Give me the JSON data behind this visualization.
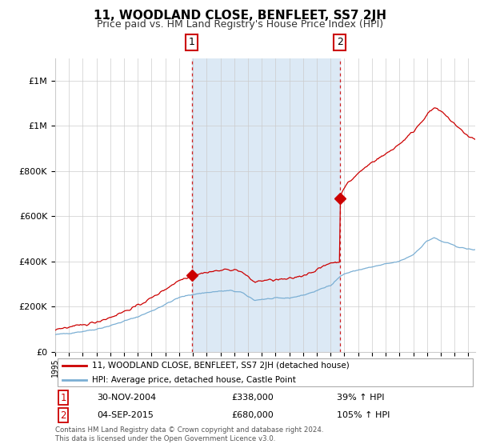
{
  "title": "11, WOODLAND CLOSE, BENFLEET, SS7 2JH",
  "subtitle": "Price paid vs. HM Land Registry's House Price Index (HPI)",
  "legend_line1": "11, WOODLAND CLOSE, BENFLEET, SS7 2JH (detached house)",
  "legend_line2": "HPI: Average price, detached house, Castle Point",
  "annotation1_date": "30-NOV-2004",
  "annotation1_price": "£338,000",
  "annotation1_hpi": "39% ↑ HPI",
  "annotation2_date": "04-SEP-2015",
  "annotation2_price": "£680,000",
  "annotation2_hpi": "105% ↑ HPI",
  "footer": "Contains HM Land Registry data © Crown copyright and database right 2024.\nThis data is licensed under the Open Government Licence v3.0.",
  "red_color": "#cc0000",
  "blue_color": "#7bafd4",
  "shaded_color": "#dce9f5",
  "grid_color": "#cccccc",
  "background_color": "#ffffff",
  "ann_box_color": "#cc0000",
  "ylim": [
    0,
    1300000
  ],
  "yticks": [
    0,
    200000,
    400000,
    600000,
    800000,
    1000000,
    1200000
  ],
  "xlim_start": 1995.0,
  "xlim_end": 2025.5,
  "sale1_x": 2004.917,
  "sale1_y": 338000,
  "sale2_x": 2015.671,
  "sale2_y": 680000
}
